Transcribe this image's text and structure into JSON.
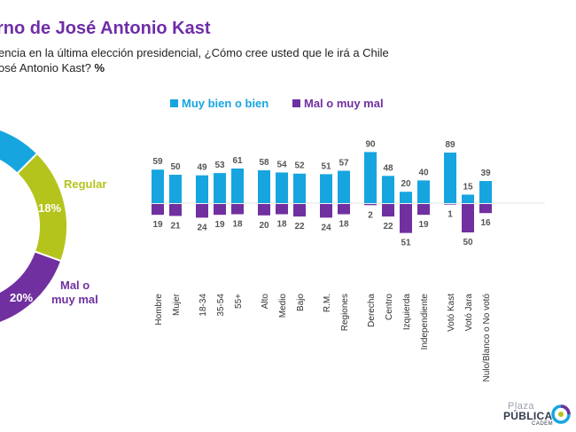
{
  "header": {
    "title": "rno de José Antonio Kast",
    "subtitle_line1": "encia en la última elección presidencial, ¿Cómo cree usted que le irá a Chile",
    "subtitle_line2": "osé Antonio Kast?",
    "subtitle_unit": "%"
  },
  "donut": {
    "type": "pie",
    "slices": [
      {
        "label": "Regular",
        "value_label": "18%",
        "value": 18,
        "color": "#b5c41c"
      },
      {
        "label": "Mal o muy mal",
        "value_label": "20%",
        "value": 20,
        "color": "#7030a0"
      }
    ],
    "label_regular": "Regular",
    "label_mal_1": "Mal o",
    "label_mal_2": "muy mal",
    "colors": {
      "bien": "#17a5e0",
      "regular": "#b5c41c",
      "mal": "#7030a0"
    }
  },
  "chart_data": {
    "type": "bar",
    "series": [
      {
        "name": "Muy bien o bien",
        "color": "#17a5e0",
        "values": [
          59,
          50,
          49,
          53,
          61,
          58,
          54,
          52,
          51,
          57,
          90,
          48,
          20,
          40,
          89,
          15,
          39
        ]
      },
      {
        "name": "Mal o muy mal",
        "color": "#7030a0",
        "values": [
          19,
          21,
          24,
          19,
          18,
          20,
          18,
          22,
          24,
          18,
          2,
          22,
          51,
          19,
          1,
          50,
          16
        ]
      }
    ],
    "categories": [
      "Hombre",
      "Mujer",
      "18-34",
      "35-54",
      "55+",
      "Alto",
      "Medio",
      "Bajo",
      "R.M.",
      "Regiones",
      "Derecha",
      "Centro",
      "Izquierda",
      "Independiente",
      "Votó Kast",
      "Votó Jara",
      "Nulo/Blanco o No votó"
    ],
    "groups": [
      [
        0,
        1
      ],
      [
        2,
        3,
        4
      ],
      [
        5,
        6,
        7
      ],
      [
        8,
        9
      ],
      [
        10,
        11,
        12,
        13
      ],
      [
        14,
        15,
        16
      ]
    ],
    "legend_position": "top",
    "grid": false
  },
  "logo": {
    "plaza": "Plaza",
    "publica": "PÚBLICA",
    "cadem": "CADEM"
  }
}
